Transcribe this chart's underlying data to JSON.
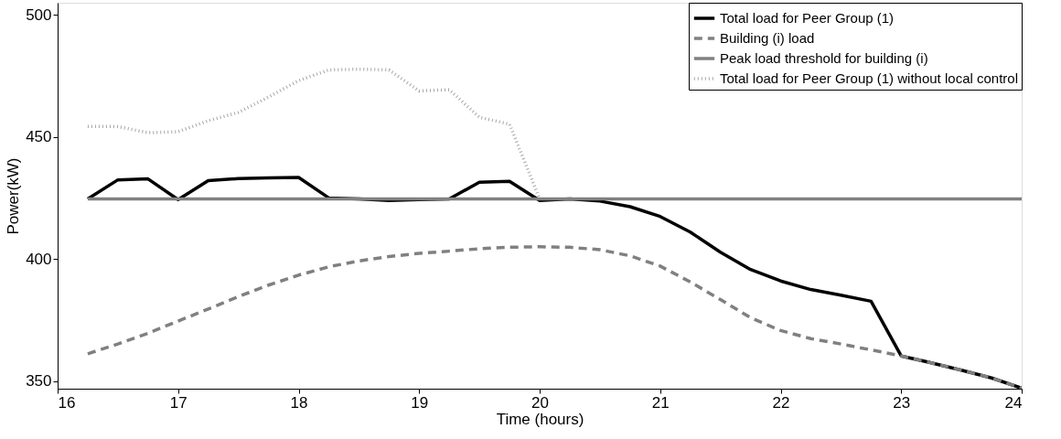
{
  "chart_data": {
    "type": "line",
    "xlabel": "Time (hours)",
    "ylabel": "Power(kW)",
    "xlim": [
      16,
      24
    ],
    "ylim": [
      347,
      505
    ],
    "xticks": [
      16,
      17,
      18,
      19,
      20,
      21,
      22,
      23,
      24
    ],
    "yticks": [
      350,
      400,
      450,
      500
    ],
    "grid": false,
    "legend": "top right",
    "marker": "none",
    "series": [
      {
        "name": "Total load for Peer Group (1)",
        "color": "#000000",
        "line_style": "solid",
        "x": [
          16.25,
          16.5,
          16.75,
          17,
          17.25,
          17.5,
          17.75,
          18,
          18.25,
          18.5,
          18.75,
          19,
          19.25,
          19.5,
          19.75,
          20,
          20.25,
          20.5,
          20.75,
          21,
          21.25,
          21.5,
          21.75,
          22,
          22.25,
          22.5,
          22.75,
          23,
          23.25,
          23.5,
          23.75,
          24
        ],
        "values": [
          424.7,
          432.5,
          432.9,
          424.4,
          432.2,
          433,
          433.3,
          433.5,
          425.1,
          424.7,
          424,
          424.4,
          424.7,
          431.5,
          431.9,
          424,
          424.7,
          423.8,
          421.5,
          417.5,
          411.1,
          402.9,
          395.8,
          391.1,
          387.6,
          385.3,
          382.8,
          360.4,
          357.6,
          354.6,
          351.4,
          347.2
        ]
      },
      {
        "name": " Building (i) load",
        "color": "#808080",
        "line_style": "dashed",
        "x": [
          16.25,
          16.5,
          16.75,
          17,
          17.25,
          17.5,
          17.75,
          18,
          18.25,
          18.5,
          18.75,
          19,
          19.25,
          19.5,
          19.75,
          20,
          20.25,
          20.5,
          20.75,
          21,
          21.25,
          21.5,
          21.75,
          22,
          22.25,
          22.5,
          22.75,
          23,
          23.25,
          23.5,
          23.75,
          24
        ],
        "values": [
          361.3,
          365.3,
          369.7,
          374.7,
          379.6,
          384.7,
          389.4,
          393.5,
          396.9,
          399.3,
          401.1,
          402.4,
          403.3,
          404.3,
          404.9,
          405.1,
          404.9,
          403.9,
          401.4,
          397.2,
          390.7,
          383.5,
          376.1,
          370.8,
          367.5,
          365.3,
          362.9,
          360.4,
          357.6,
          354.6,
          351.4,
          347.2
        ]
      },
      {
        "name": "Peak load threshold for building (i)",
        "color": "#808080",
        "line_style": "solid",
        "x": [
          16.25,
          24
        ],
        "values": [
          424.7,
          424.7
        ]
      },
      {
        "name": "Total load for Peer Group (1) without local control",
        "color": "#a6a6a6",
        "line_style": "dotted",
        "x": [
          16.25,
          16.5,
          16.75,
          17,
          17.25,
          17.5,
          17.75,
          18,
          18.25,
          18.5,
          18.75,
          19,
          19.25,
          19.5,
          19.75,
          20
        ],
        "values": [
          454.4,
          454.3,
          451.8,
          452.2,
          456.7,
          460.1,
          466.4,
          473.1,
          477.5,
          477.8,
          477.5,
          468.9,
          469.4,
          458.1,
          455.3,
          424.7
        ]
      }
    ]
  }
}
